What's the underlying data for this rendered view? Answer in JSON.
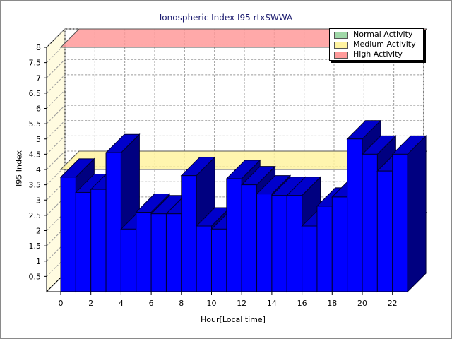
{
  "chart_data": {
    "type": "bar",
    "title": "Ionospheric Index I95 rtxSWWA",
    "xlabel": "Hour[Local time]",
    "ylabel": "I95 Index",
    "categories": [
      0,
      1,
      2,
      3,
      4,
      5,
      6,
      7,
      8,
      9,
      10,
      11,
      12,
      13,
      14,
      15,
      16,
      17,
      18,
      19,
      20,
      21,
      22,
      23
    ],
    "x_tick_labels": [
      "0",
      "2",
      "4",
      "6",
      "8",
      "10",
      "12",
      "14",
      "16",
      "18",
      "20",
      "22"
    ],
    "y_tick_labels": [
      "0.5",
      "1",
      "1.5",
      "2",
      "2.5",
      "3",
      "3.5",
      "4",
      "4.5",
      "5",
      "5.5",
      "6",
      "6.5",
      "7",
      "7.5",
      "8"
    ],
    "ylim": [
      0,
      8
    ],
    "values": [
      3.75,
      3.25,
      3.35,
      4.55,
      2.05,
      2.6,
      2.55,
      2.55,
      3.8,
      2.15,
      2.05,
      3.7,
      3.5,
      3.2,
      3.15,
      3.15,
      2.15,
      2.8,
      3.1,
      5.0,
      4.5,
      3.95,
      4.5,
      0
    ],
    "bar_color": "#0000ff",
    "bands": [
      {
        "name": "Normal Activity",
        "value": 2.0,
        "color": "#a0d8a8"
      },
      {
        "name": "Medium Activity",
        "value": 4.0,
        "color": "#fff3a0"
      },
      {
        "name": "High Activity",
        "value": 8.0,
        "color": "#ff9a9a"
      }
    ],
    "legend_position": "top-right",
    "grid": true,
    "three_d": true
  }
}
